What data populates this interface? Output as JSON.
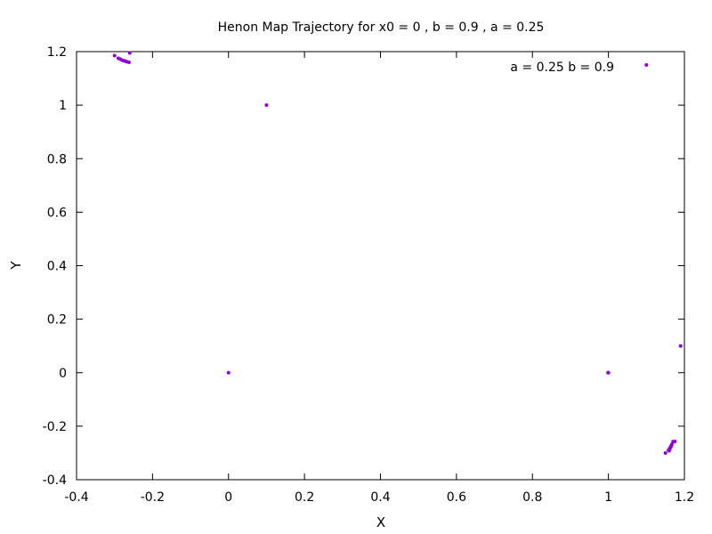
{
  "chart_data": {
    "type": "scatter",
    "title": "Henon Map Trajectory for x0 = 0 , b = 0.9 , a = 0.25",
    "xlabel": "X",
    "ylabel": "Y",
    "xlim": [
      -0.4,
      1.2
    ],
    "ylim": [
      -0.4,
      1.2
    ],
    "xticks": [
      "-0.4",
      "-0.2",
      "0",
      "0.2",
      "0.4",
      "0.6",
      "0.8",
      "1",
      "1.2"
    ],
    "yticks": [
      "-0.4",
      "-0.2",
      "0",
      "0.2",
      "0.4",
      "0.6",
      "0.8",
      "1",
      "1.2"
    ],
    "grid": false,
    "legend": "none",
    "annotation": "a = 0.25 b = 0.9",
    "point_color": "#9400d3",
    "series": [
      {
        "x": [
          0,
          1,
          0.1,
          1.1,
          1.19,
          0.999,
          1.15,
          1.158,
          1.161,
          1.163,
          1.165,
          1.167,
          1.17,
          1.175,
          1.16,
          1.162,
          1.164,
          1.166,
          -0.3,
          -0.29,
          -0.285,
          -0.28,
          -0.276,
          -0.272,
          -0.268,
          -0.262,
          -0.26
        ],
        "y": [
          0,
          0,
          1,
          1.15,
          0.1,
          0.0,
          -0.3,
          -0.29,
          -0.285,
          -0.28,
          -0.275,
          -0.268,
          -0.258,
          -0.257,
          -0.292,
          -0.283,
          -0.277,
          -0.272,
          1.185,
          1.175,
          1.172,
          1.168,
          1.166,
          1.165,
          1.162,
          1.16,
          1.195
        ]
      }
    ]
  }
}
